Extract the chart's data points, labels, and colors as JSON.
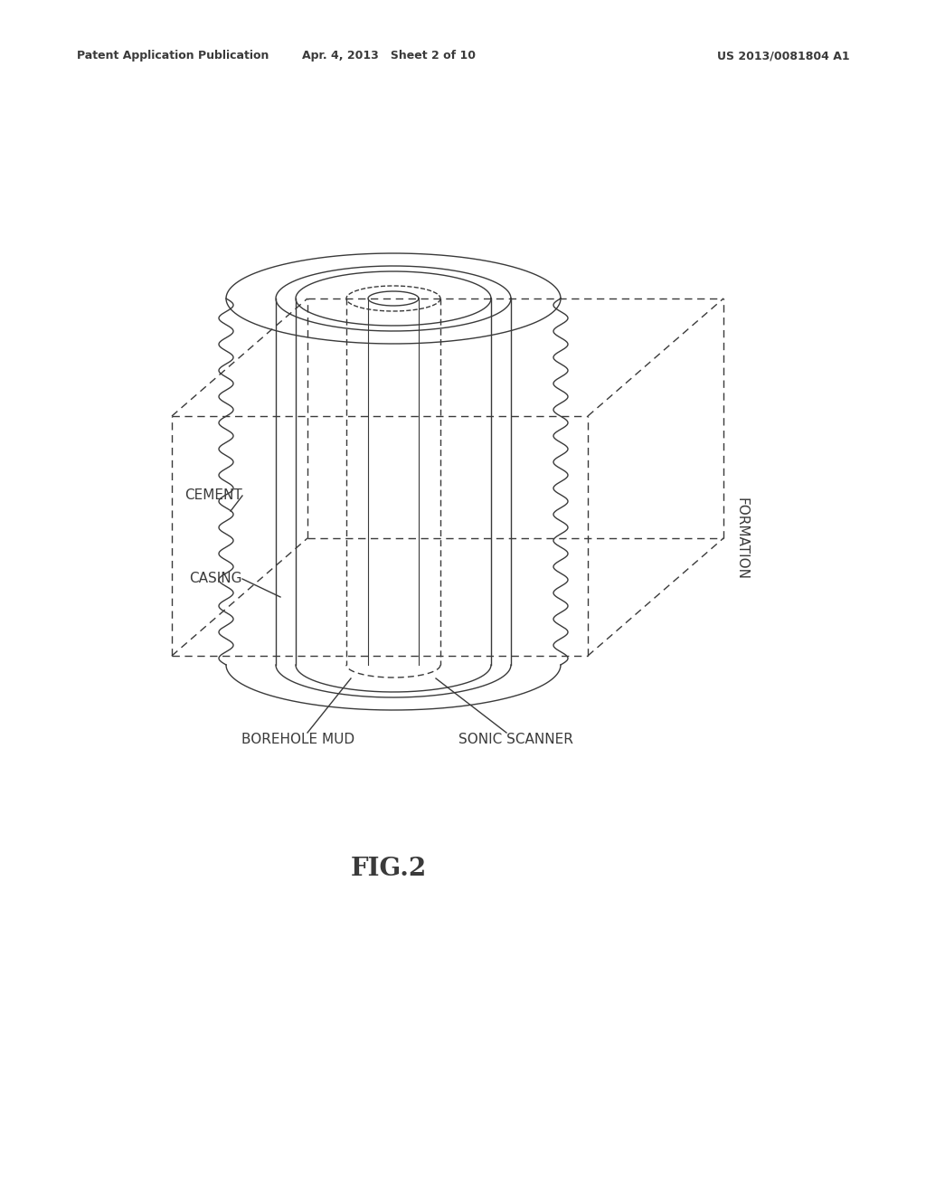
{
  "bg_color": "#ffffff",
  "text_color": "#2a2a2a",
  "header_left": "Patent Application Publication",
  "header_center": "Apr. 4, 2013   Sheet 2 of 10",
  "header_right": "US 2013/0081804 A1",
  "fig_label": "FIG.2",
  "labels": {
    "cement": "CEMENT",
    "casing": "CASING",
    "formation": "FORMATION",
    "borehole_mud": "BOREHOLE MUD",
    "sonic_scanner": "SONIC SCANNER"
  },
  "line_color": "#3a3a3a",
  "line_width": 1.0
}
